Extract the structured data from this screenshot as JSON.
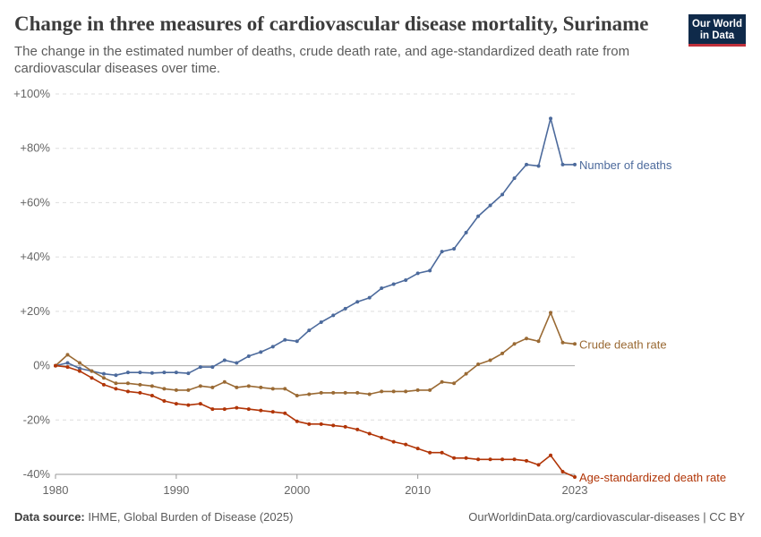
{
  "header": {
    "title": "Change in three measures of cardiovascular disease mortality, Suriname",
    "subtitle": "The change in the estimated number of deaths, crude death rate, and age-standardized death rate from cardiovascular diseases over time.",
    "logo_line1": "Our World",
    "logo_line2": "in Data"
  },
  "footer": {
    "source_label": "Data source:",
    "source_text": "IHME, Global Burden of Disease (2025)",
    "credit": "OurWorldinData.org/cardiovascular-diseases | CC BY"
  },
  "colors": {
    "number_of_deaths": "#4c6a9c",
    "crude_death_rate": "#9a6a34",
    "age_standardized": "#b13507",
    "grid": "#dddddd",
    "zero_line": "#aaaaaa"
  },
  "chart_data": {
    "type": "line",
    "title": "Change in three measures of cardiovascular disease mortality, Suriname",
    "xlim": [
      1980,
      2023
    ],
    "ylim": [
      -40,
      100
    ],
    "y_ticks": [
      -40,
      -20,
      0,
      20,
      40,
      60,
      80,
      100
    ],
    "y_tick_labels": [
      "-40%",
      "-20%",
      "0%",
      "+20%",
      "+40%",
      "+60%",
      "+80%",
      "+100%"
    ],
    "x_ticks": [
      1980,
      1990,
      2000,
      2010,
      2023
    ],
    "x_tick_labels": [
      "1980",
      "1990",
      "2000",
      "2010",
      "2023"
    ],
    "grid": true,
    "legend": "inline-right",
    "x": [
      1980,
      1981,
      1982,
      1983,
      1984,
      1985,
      1986,
      1987,
      1988,
      1989,
      1990,
      1991,
      1992,
      1993,
      1994,
      1995,
      1996,
      1997,
      1998,
      1999,
      2000,
      2001,
      2002,
      2003,
      2004,
      2005,
      2006,
      2007,
      2008,
      2009,
      2010,
      2011,
      2012,
      2013,
      2014,
      2015,
      2016,
      2017,
      2018,
      2019,
      2020,
      2021,
      2022,
      2023
    ],
    "series": [
      {
        "name": "Number of deaths",
        "values": [
          0,
          1,
          -1,
          -2,
          -3,
          -3.5,
          -2.5,
          -2.5,
          -2.7,
          -2.5,
          -2.5,
          -2.8,
          -0.5,
          -0.5,
          2,
          1,
          3.5,
          5,
          7,
          9.5,
          9,
          13,
          16,
          18.5,
          21,
          23.5,
          25,
          28.5,
          30,
          31.5,
          34,
          35,
          42,
          43,
          49,
          55,
          59,
          63,
          69,
          74,
          73.5,
          91,
          74,
          74
        ]
      },
      {
        "name": "Crude death rate",
        "values": [
          0,
          4,
          1,
          -2,
          -4.5,
          -6.5,
          -6.5,
          -7,
          -7.5,
          -8.5,
          -9,
          -9,
          -7.5,
          -8,
          -6,
          -8,
          -7.5,
          -8,
          -8.5,
          -8.5,
          -11,
          -10.5,
          -10,
          -10,
          -10,
          -10,
          -10.5,
          -9.5,
          -9.5,
          -9.5,
          -9,
          -9,
          -6,
          -6.5,
          -3,
          0.5,
          2,
          4.5,
          8,
          10,
          9,
          19.5,
          8.5,
          8
        ]
      },
      {
        "name": "Age-standardized death rate",
        "values": [
          0,
          -0.5,
          -2,
          -4.5,
          -7,
          -8.5,
          -9.5,
          -10,
          -11,
          -13,
          -14,
          -14.5,
          -14,
          -16,
          -16,
          -15.5,
          -16,
          -16.5,
          -17,
          -17.5,
          -20.5,
          -21.5,
          -21.5,
          -22,
          -22.5,
          -23.5,
          -25,
          -26.5,
          -28,
          -29,
          -30.5,
          -32,
          -32,
          -34,
          -34,
          -34.5,
          -34.5,
          -34.5,
          -34.5,
          -35,
          -36.5,
          -33,
          -39,
          -41
        ]
      }
    ]
  }
}
